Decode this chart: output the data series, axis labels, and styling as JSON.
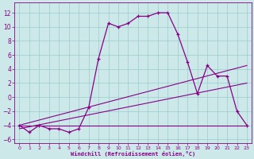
{
  "xlabel": "Windchill (Refroidissement éolien,°C)",
  "ylabel": "",
  "bg_color": "#cce8e8",
  "grid_color": "#99cccc",
  "line_color": "#880088",
  "xlim": [
    -0.5,
    23.5
  ],
  "ylim": [
    -6.5,
    13.5
  ],
  "xticks": [
    0,
    1,
    2,
    3,
    4,
    5,
    6,
    7,
    8,
    9,
    10,
    11,
    12,
    13,
    14,
    15,
    16,
    17,
    18,
    19,
    20,
    21,
    22,
    23
  ],
  "yticks": [
    -6,
    -4,
    -2,
    0,
    2,
    4,
    6,
    8,
    10,
    12
  ],
  "curve1_x": [
    0,
    1,
    2,
    3,
    4,
    5,
    6,
    7,
    8,
    9,
    10,
    11,
    12,
    13,
    14,
    15,
    16,
    17,
    18,
    19,
    20,
    21,
    22,
    23
  ],
  "curve1_y": [
    -4,
    -5,
    -4,
    -4.5,
    -4.5,
    -5,
    -4.5,
    -1.5,
    5.5,
    10.5,
    10,
    10.5,
    11.5,
    11.5,
    12,
    12,
    9,
    5,
    0.5,
    4.5,
    3,
    3,
    -2,
    -4
  ],
  "curve2_x": [
    0,
    23
  ],
  "curve2_y": [
    -4,
    -4
  ],
  "line3_x": [
    0,
    23
  ],
  "line3_y": [
    -4.5,
    2.0
  ],
  "line4_x": [
    0,
    23
  ],
  "line4_y": [
    -4.0,
    4.5
  ]
}
